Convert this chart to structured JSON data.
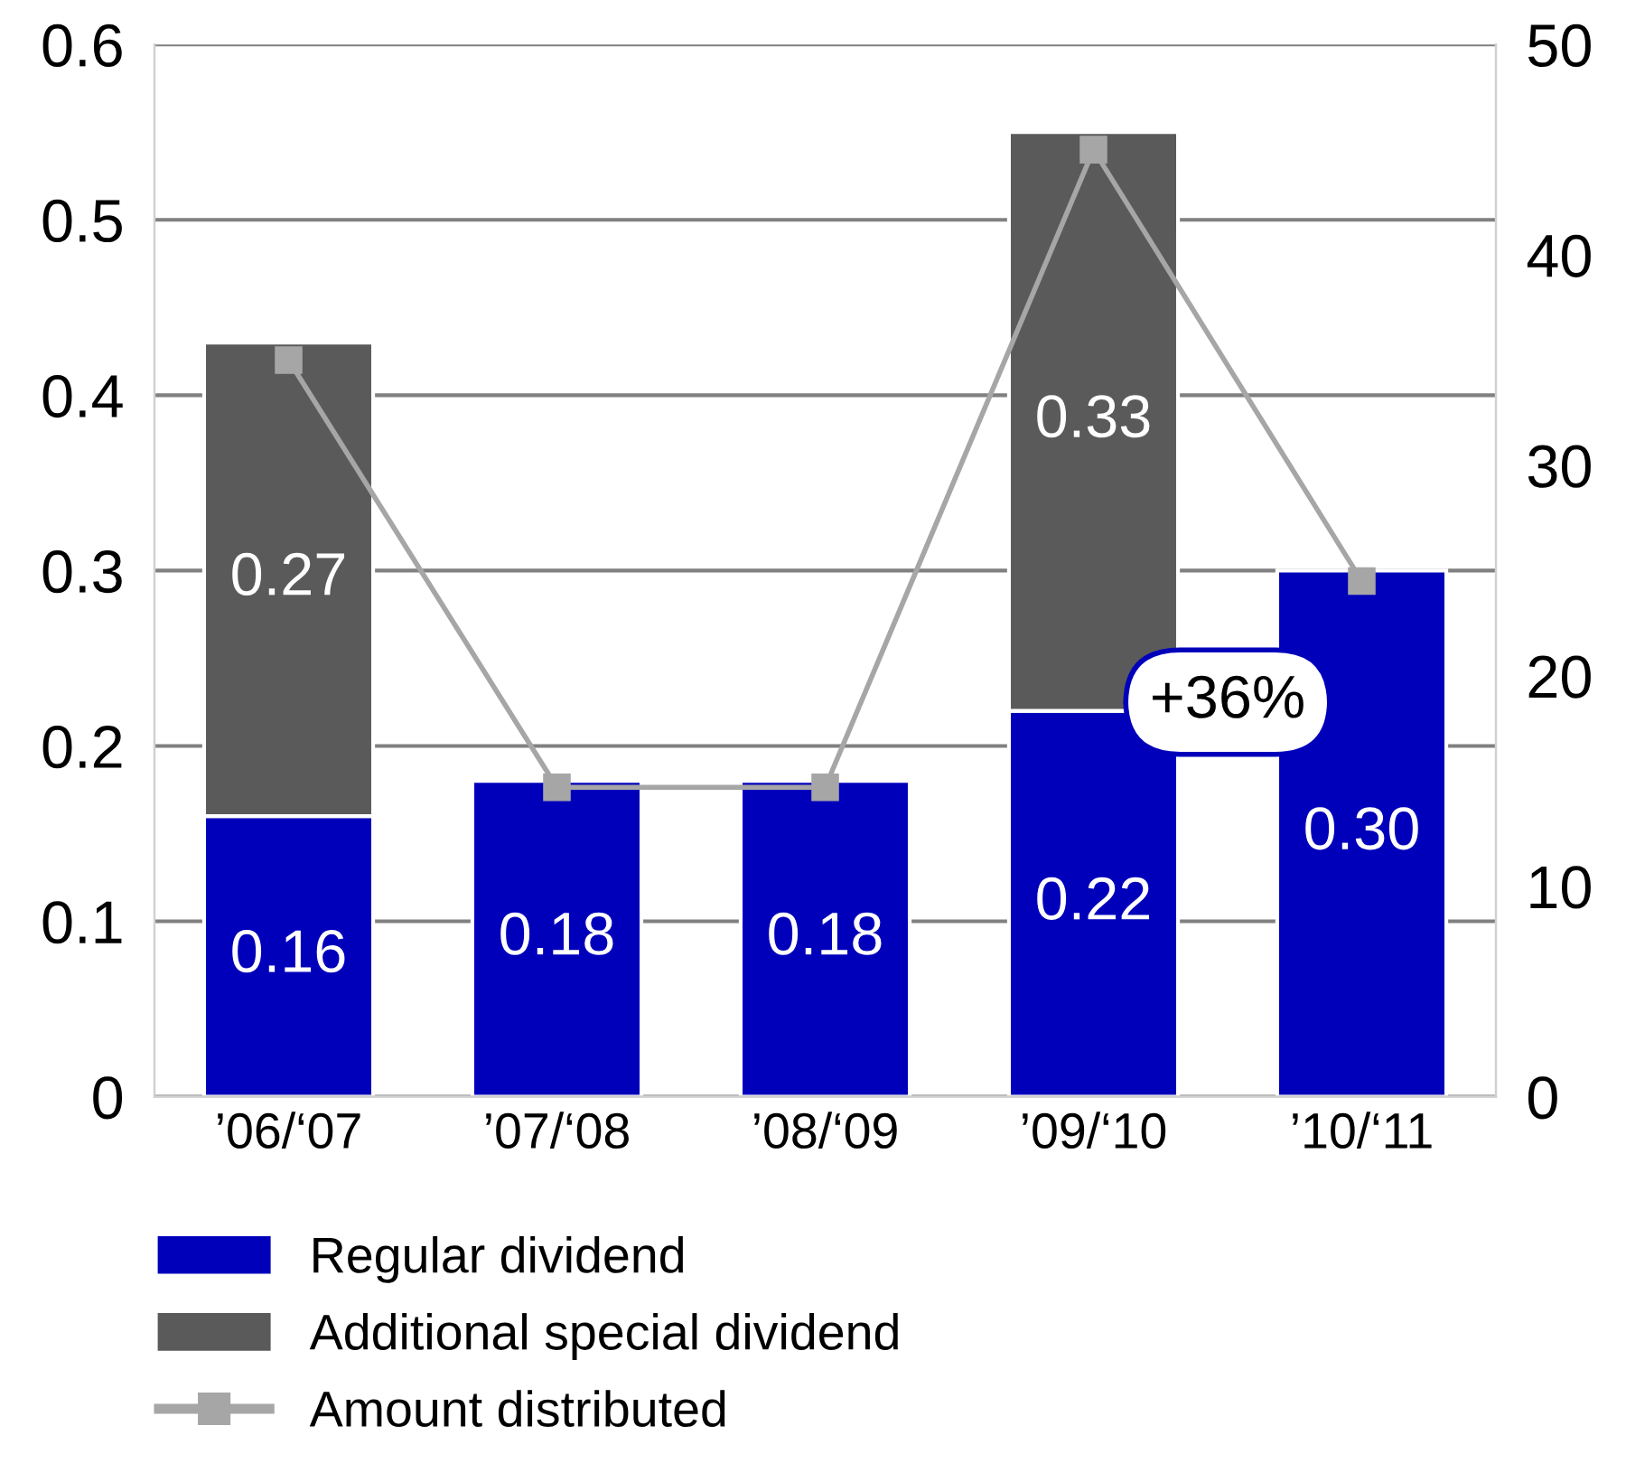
{
  "chart_data": {
    "type": "bar",
    "stacked": true,
    "categories": [
      "’06/‘07",
      "’07/‘08",
      "’08/‘09",
      "’09/‘10",
      "’10/‘11"
    ],
    "series": [
      {
        "name": "Regular dividend",
        "color": "#0000bb",
        "values": [
          0.16,
          0.18,
          0.18,
          0.22,
          0.3
        ],
        "value_labels": [
          "0.16",
          "0.18",
          "0.18",
          "0.22",
          "0.30"
        ]
      },
      {
        "name": "Additional special dividend",
        "color": "#5a5a5a",
        "values": [
          0.27,
          null,
          null,
          0.33,
          null
        ],
        "value_labels": [
          "0.27",
          null,
          null,
          "0.33",
          null
        ]
      },
      {
        "name": "Amount distributed",
        "type": "line",
        "axis": "y2",
        "color": "#a6a6a6",
        "marker": "square",
        "values": [
          35,
          14.7,
          14.7,
          45,
          24.5
        ]
      }
    ],
    "ylim": [
      0,
      0.6
    ],
    "yticks": [
      0,
      0.1,
      0.2,
      0.3,
      0.4,
      0.5,
      0.6
    ],
    "y2lim": [
      0,
      50
    ],
    "y2ticks": [
      0,
      10,
      20,
      30,
      40,
      50
    ],
    "grid": "y",
    "legend": "bottom left",
    "annotations": [
      "+36%"
    ]
  }
}
